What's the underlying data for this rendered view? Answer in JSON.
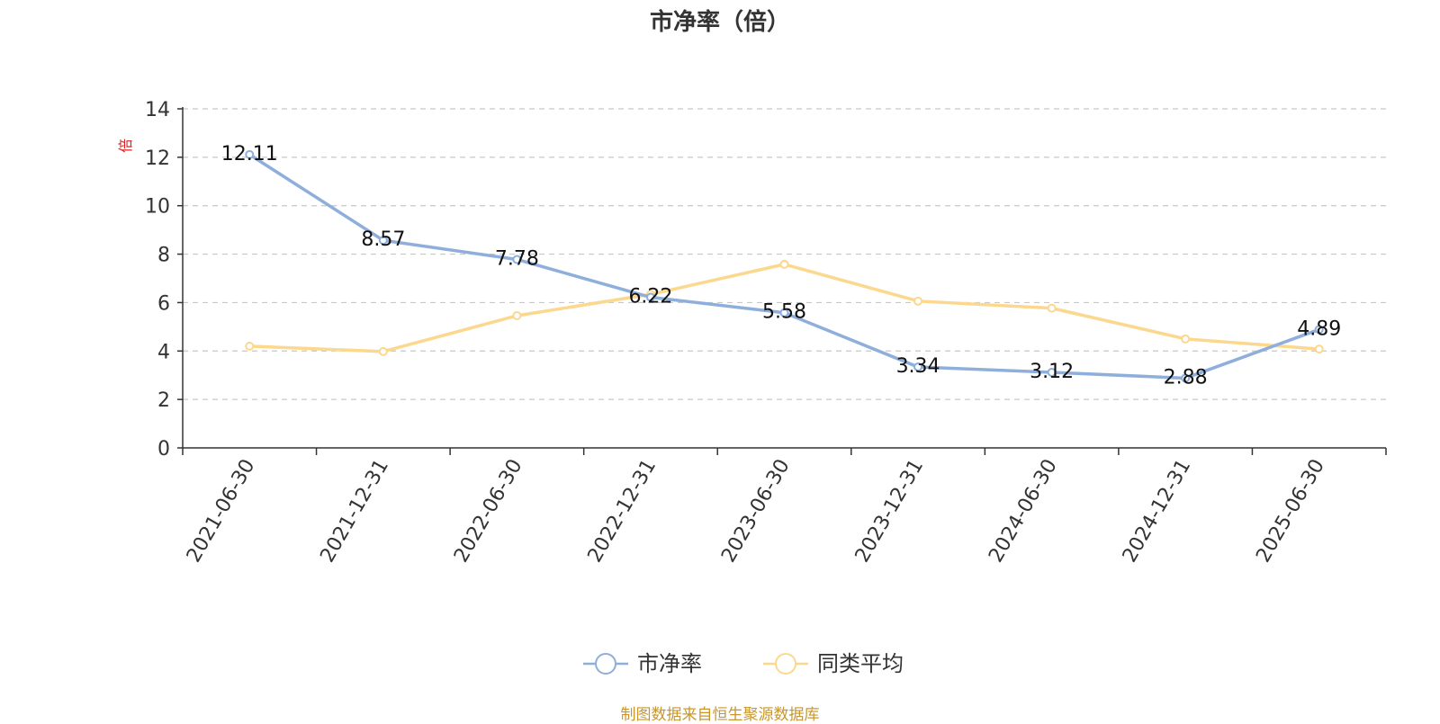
{
  "chart_data": {
    "type": "line",
    "title": "市净率（倍）",
    "ylabel": "倍",
    "categories": [
      "2021-06-30",
      "2021-12-31",
      "2022-06-30",
      "2022-12-31",
      "2023-06-30",
      "2023-12-31",
      "2024-06-30",
      "2024-12-31",
      "2025-06-30"
    ],
    "ylim": [
      0,
      14
    ],
    "yticks": [
      0,
      2,
      4,
      6,
      8,
      10,
      12,
      14
    ],
    "grid": true,
    "legend_position": "bottom-center",
    "series": [
      {
        "name": "市净率",
        "color": "#8eaedb",
        "values": [
          12.11,
          8.57,
          7.78,
          6.22,
          5.58,
          3.34,
          3.12,
          2.88,
          4.89
        ],
        "data_labels": [
          "12.11",
          "8.57",
          "7.78",
          "6.22",
          "5.58",
          "3.34",
          "3.12",
          "2.88",
          "4.89"
        ]
      },
      {
        "name": "同类平均",
        "color": "#fbd88e",
        "values": [
          4.2,
          3.98,
          5.46,
          6.34,
          7.58,
          6.06,
          5.77,
          4.5,
          4.08
        ]
      }
    ]
  },
  "footer": {
    "source": "制图数据来自恒生聚源数据库"
  }
}
